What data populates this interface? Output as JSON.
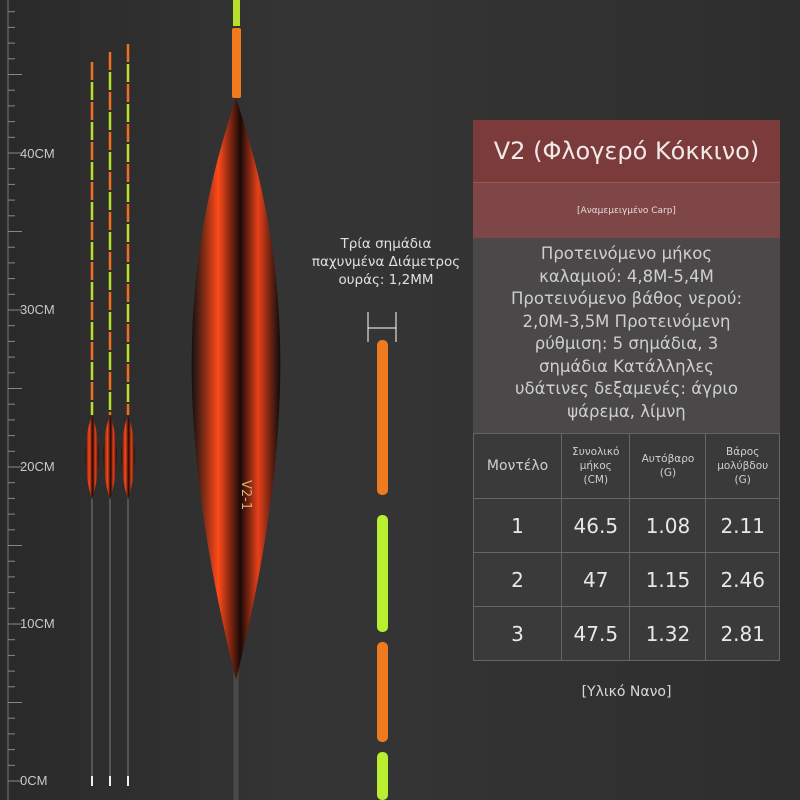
{
  "ruler": {
    "labels": [
      "40CM",
      "30CM",
      "20CM",
      "10CM",
      "0CM"
    ]
  },
  "float_label": "V2-1",
  "annotation": {
    "lines": [
      "Τρία σημάδια",
      "παχυνμένα Διάμετρος",
      "ουράς: 1,2MM"
    ]
  },
  "panel": {
    "title": "V2 (Φλογερό Κόκκινο)",
    "subtitle": "[Αναμεμειγμένο Carp]",
    "description": [
      "Προτεινόμενο μήκος",
      "καλαμιού: 4,8M-5,4M",
      "Προτεινόμενο βάθος νερού:",
      "2,0M-3,5M Προτεινόμενη",
      "ρύθμιση: 5 σημάδια, 3",
      "σημάδια Κατάλληλες",
      "υδάτινες δεξαμενές: άγριο",
      "ψάρεμα, λίμνη"
    ],
    "table": {
      "header": [
        [
          "Μοντέλο"
        ],
        [
          "Συνολικό",
          "μήκος",
          "(CM)"
        ],
        [
          "Αυτόβαρο",
          "(G)"
        ],
        [
          "Βάρος",
          "μολύβδου",
          "(G)"
        ]
      ],
      "rows": [
        [
          1,
          46.5,
          1.08,
          2.11
        ],
        [
          2,
          47,
          1.15,
          2.46
        ],
        [
          3,
          47.5,
          1.32,
          2.81
        ]
      ]
    },
    "footer": "[Υλικό Νανο]"
  }
}
